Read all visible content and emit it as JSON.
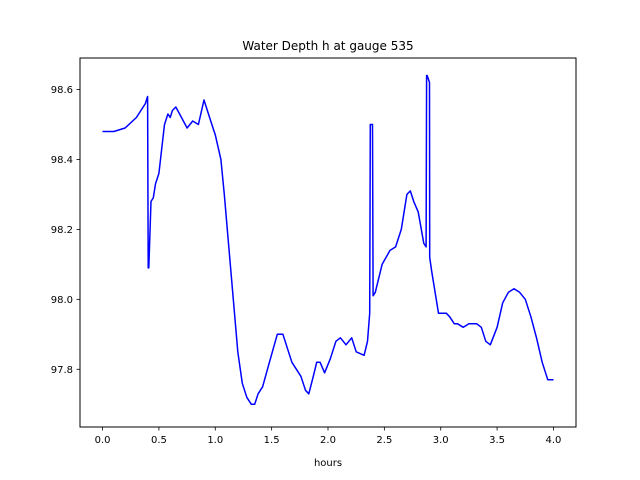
{
  "chart_data": {
    "type": "line",
    "title": "Water Depth h at gauge 535",
    "xlabel": "hours",
    "ylabel": "",
    "xlim": [
      -0.2,
      4.2
    ],
    "ylim": [
      97.635,
      98.69
    ],
    "xticks": [
      0.0,
      0.5,
      1.0,
      1.5,
      2.0,
      2.5,
      3.0,
      3.5,
      4.0
    ],
    "xtick_labels": [
      "0.0",
      "0.5",
      "1.0",
      "1.5",
      "2.0",
      "2.5",
      "3.0",
      "3.5",
      "4.0"
    ],
    "yticks": [
      97.8,
      98.0,
      98.2,
      98.4,
      98.6
    ],
    "ytick_labels": [
      "97.8",
      "98.0",
      "98.2",
      "98.4",
      "98.6"
    ],
    "grid": false,
    "legend": "none",
    "series": [
      {
        "color": "#0000ff",
        "x": [
          0.0,
          0.1,
          0.2,
          0.3,
          0.38,
          0.4,
          0.405,
          0.41,
          0.43,
          0.45,
          0.47,
          0.5,
          0.55,
          0.58,
          0.6,
          0.62,
          0.65,
          0.7,
          0.75,
          0.8,
          0.85,
          0.9,
          0.95,
          0.98,
          1.0,
          1.05,
          1.08,
          1.12,
          1.16,
          1.2,
          1.24,
          1.28,
          1.32,
          1.35,
          1.38,
          1.42,
          1.48,
          1.55,
          1.6,
          1.64,
          1.68,
          1.72,
          1.76,
          1.8,
          1.83,
          1.87,
          1.9,
          1.93,
          1.97,
          2.02,
          2.07,
          2.11,
          2.16,
          2.21,
          2.25,
          2.32,
          2.35,
          2.37,
          2.375,
          2.39,
          2.395,
          2.4,
          2.42,
          2.48,
          2.55,
          2.6,
          2.65,
          2.7,
          2.73,
          2.76,
          2.8,
          2.85,
          2.87,
          2.875,
          2.88,
          2.9,
          2.902,
          2.92,
          2.98,
          3.03,
          3.05,
          3.08,
          3.12,
          3.15,
          3.2,
          3.25,
          3.28,
          3.32,
          3.36,
          3.4,
          3.44,
          3.5,
          3.55,
          3.6,
          3.65,
          3.7,
          3.75,
          3.8,
          3.85,
          3.9,
          3.95,
          4.0
        ],
        "y": [
          98.48,
          98.48,
          98.49,
          98.52,
          98.56,
          98.58,
          98.09,
          98.09,
          98.28,
          98.29,
          98.33,
          98.36,
          98.5,
          98.53,
          98.52,
          98.54,
          98.55,
          98.52,
          98.49,
          98.51,
          98.5,
          98.57,
          98.52,
          98.49,
          98.47,
          98.4,
          98.3,
          98.15,
          98.0,
          97.85,
          97.76,
          97.72,
          97.7,
          97.7,
          97.73,
          97.75,
          97.82,
          97.9,
          97.9,
          97.86,
          97.82,
          97.8,
          97.78,
          97.74,
          97.73,
          97.78,
          97.82,
          97.82,
          97.79,
          97.83,
          97.88,
          97.89,
          97.87,
          97.89,
          97.85,
          97.84,
          97.88,
          97.96,
          98.5,
          98.5,
          98.5,
          98.01,
          98.02,
          98.1,
          98.14,
          98.15,
          98.2,
          98.3,
          98.31,
          98.28,
          98.25,
          98.16,
          98.15,
          98.64,
          98.64,
          98.62,
          98.12,
          98.08,
          97.96,
          97.96,
          97.96,
          97.95,
          97.93,
          97.93,
          97.92,
          97.93,
          97.93,
          97.93,
          97.92,
          97.88,
          97.87,
          97.92,
          97.99,
          98.02,
          98.03,
          98.02,
          98.0,
          97.95,
          97.89,
          97.82,
          97.77,
          97.77
        ]
      }
    ]
  }
}
